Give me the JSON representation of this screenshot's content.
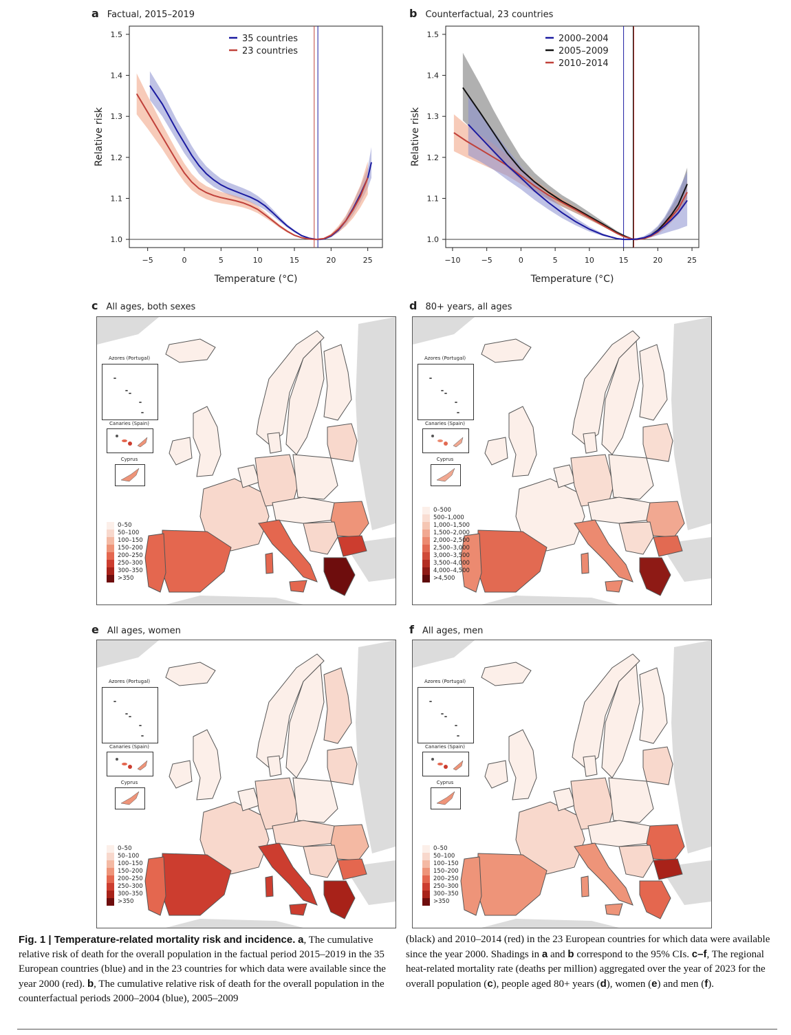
{
  "chart_data": [
    {
      "id": "a",
      "type": "line",
      "panel_letter": "a",
      "title": "Factual, 2015–2019",
      "xlabel": "Temperature (°C)",
      "ylabel": "Relative risk",
      "xlim": [
        -7.5,
        27
      ],
      "ylim": [
        0.98,
        1.52
      ],
      "xticks": [
        -5,
        0,
        5,
        10,
        15,
        20,
        25
      ],
      "yticks": [
        1.0,
        1.1,
        1.2,
        1.3,
        1.4,
        1.5
      ],
      "ytick_labels": [
        "1.0",
        "1.1",
        "1.2",
        "1.3",
        "1.4",
        "1.5"
      ],
      "reference_line_y": 1.0,
      "legend_position": "top-center",
      "series": [
        {
          "name": "35 countries",
          "color": "#1a1aa0",
          "band_color": "#8a8fd0",
          "mmt": 18.2,
          "x": [
            -4.7,
            -3,
            -1,
            0,
            1,
            2,
            3,
            4,
            5,
            6,
            7,
            8,
            9,
            10,
            11,
            12,
            13,
            14,
            15,
            16,
            17,
            18,
            18.5,
            19,
            20,
            21,
            22,
            23,
            24,
            25,
            25.5
          ],
          "y": [
            1.375,
            1.33,
            1.265,
            1.235,
            1.205,
            1.18,
            1.16,
            1.145,
            1.133,
            1.124,
            1.117,
            1.11,
            1.103,
            1.094,
            1.082,
            1.066,
            1.049,
            1.033,
            1.02,
            1.009,
            1.003,
            1.0,
            1.0,
            1.001,
            1.008,
            1.023,
            1.045,
            1.075,
            1.11,
            1.15,
            1.188
          ],
          "lower": [
            1.34,
            1.3,
            1.24,
            1.21,
            1.185,
            1.16,
            1.142,
            1.128,
            1.118,
            1.109,
            1.102,
            1.096,
            1.09,
            1.082,
            1.072,
            1.058,
            1.043,
            1.029,
            1.017,
            1.007,
            1.002,
            1.0,
            1.0,
            1.0,
            1.005,
            1.017,
            1.035,
            1.06,
            1.09,
            1.125,
            1.15
          ],
          "upper": [
            1.41,
            1.36,
            1.29,
            1.26,
            1.228,
            1.2,
            1.178,
            1.162,
            1.148,
            1.139,
            1.132,
            1.125,
            1.117,
            1.106,
            1.092,
            1.074,
            1.055,
            1.037,
            1.023,
            1.011,
            1.004,
            1.0,
            1.0,
            1.002,
            1.011,
            1.029,
            1.055,
            1.09,
            1.13,
            1.175,
            1.225
          ]
        },
        {
          "name": "23 countries",
          "color": "#c0413a",
          "band_color": "#f0a080",
          "mmt": 17.7,
          "x": [
            -6.5,
            -5,
            -3,
            -1,
            0,
            1,
            2,
            3,
            4,
            5,
            6,
            7,
            8,
            9,
            10,
            11,
            12,
            13,
            14,
            15,
            16,
            17,
            17.7,
            18,
            19,
            20,
            21,
            22,
            23,
            24,
            25
          ],
          "y": [
            1.355,
            1.31,
            1.25,
            1.19,
            1.162,
            1.14,
            1.124,
            1.114,
            1.107,
            1.102,
            1.098,
            1.094,
            1.089,
            1.082,
            1.073,
            1.06,
            1.046,
            1.032,
            1.02,
            1.01,
            1.004,
            1.001,
            1.0,
            1.0,
            1.002,
            1.01,
            1.025,
            1.045,
            1.072,
            1.105,
            1.15
          ],
          "lower": [
            1.305,
            1.27,
            1.22,
            1.165,
            1.14,
            1.12,
            1.107,
            1.098,
            1.092,
            1.088,
            1.085,
            1.082,
            1.078,
            1.072,
            1.064,
            1.053,
            1.041,
            1.028,
            1.017,
            1.008,
            1.003,
            1.0,
            1.0,
            1.0,
            1.001,
            1.006,
            1.017,
            1.032,
            1.052,
            1.078,
            1.11
          ],
          "upper": [
            1.405,
            1.35,
            1.28,
            1.215,
            1.185,
            1.16,
            1.142,
            1.13,
            1.122,
            1.116,
            1.111,
            1.106,
            1.1,
            1.092,
            1.082,
            1.067,
            1.051,
            1.036,
            1.023,
            1.012,
            1.005,
            1.002,
            1.0,
            1.0,
            1.003,
            1.014,
            1.033,
            1.058,
            1.092,
            1.132,
            1.19
          ]
        }
      ]
    },
    {
      "id": "b",
      "type": "line",
      "panel_letter": "b",
      "title": "Counterfactual, 23 countries",
      "xlabel": "Temperature (°C)",
      "ylabel": "Relative risk",
      "xlim": [
        -11,
        26
      ],
      "ylim": [
        0.98,
        1.52
      ],
      "xticks": [
        -10,
        -5,
        0,
        5,
        10,
        15,
        20,
        25
      ],
      "yticks": [
        1.0,
        1.1,
        1.2,
        1.3,
        1.4,
        1.5
      ],
      "ytick_labels": [
        "1.0",
        "1.1",
        "1.2",
        "1.3",
        "1.4",
        "1.5"
      ],
      "reference_line_y": 1.0,
      "legend_position": "top-center",
      "series": [
        {
          "name": "2005–2009",
          "color": "#111111",
          "band_color": "#707070",
          "mmt": 16.4,
          "x": [
            -8.5,
            -6,
            -4,
            -2,
            0,
            2,
            4,
            6,
            8,
            10,
            12,
            14,
            15,
            16.4,
            17,
            18,
            19,
            20,
            21,
            22,
            23,
            24.3
          ],
          "y": [
            1.37,
            1.31,
            1.26,
            1.21,
            1.17,
            1.14,
            1.115,
            1.093,
            1.075,
            1.056,
            1.037,
            1.017,
            1.009,
            1.0,
            1.0,
            1.003,
            1.01,
            1.022,
            1.04,
            1.06,
            1.085,
            1.135
          ],
          "lower": [
            1.29,
            1.25,
            1.21,
            1.175,
            1.145,
            1.12,
            1.098,
            1.08,
            1.064,
            1.048,
            1.031,
            1.013,
            1.006,
            1.0,
            1.0,
            1.002,
            1.006,
            1.015,
            1.028,
            1.045,
            1.065,
            1.1
          ],
          "upper": [
            1.455,
            1.38,
            1.315,
            1.255,
            1.2,
            1.162,
            1.133,
            1.108,
            1.088,
            1.066,
            1.043,
            1.021,
            1.012,
            1.0,
            1.001,
            1.005,
            1.015,
            1.03,
            1.052,
            1.08,
            1.11,
            1.175
          ]
        },
        {
          "name": "2010–2014",
          "color": "#c0413a",
          "band_color": "#f0a080",
          "mmt": 16.5,
          "x": [
            -9.8,
            -8,
            -6,
            -4,
            -2,
            0,
            2,
            4,
            6,
            8,
            10,
            12,
            14,
            15,
            16.5,
            17,
            18,
            19,
            20,
            21,
            22,
            23,
            24.3
          ],
          "y": [
            1.26,
            1.24,
            1.22,
            1.2,
            1.18,
            1.155,
            1.13,
            1.108,
            1.09,
            1.072,
            1.053,
            1.034,
            1.015,
            1.007,
            1.0,
            1.0,
            1.002,
            1.008,
            1.018,
            1.035,
            1.055,
            1.075,
            1.115
          ],
          "lower": [
            1.215,
            1.2,
            1.185,
            1.17,
            1.155,
            1.135,
            1.115,
            1.097,
            1.081,
            1.065,
            1.048,
            1.031,
            1.013,
            1.006,
            1.0,
            1.0,
            1.001,
            1.005,
            1.012,
            1.025,
            1.042,
            1.06,
            1.09
          ],
          "upper": [
            1.305,
            1.28,
            1.255,
            1.232,
            1.205,
            1.175,
            1.145,
            1.12,
            1.099,
            1.079,
            1.058,
            1.037,
            1.017,
            1.008,
            1.0,
            1.001,
            1.004,
            1.012,
            1.025,
            1.045,
            1.068,
            1.092,
            1.14
          ]
        },
        {
          "name": "2000–2004",
          "color": "#1a1aa0",
          "band_color": "#8a8fd0",
          "mmt": 15.0,
          "x": [
            -7.7,
            -6,
            -4,
            -2,
            0,
            2,
            4,
            6,
            8,
            10,
            12,
            14,
            15,
            16,
            17,
            18,
            19,
            20,
            21,
            22,
            23,
            24.3
          ],
          "y": [
            1.28,
            1.25,
            1.215,
            1.18,
            1.15,
            1.118,
            1.09,
            1.065,
            1.043,
            1.025,
            1.011,
            1.002,
            1.0,
            1.0,
            1.001,
            1.004,
            1.01,
            1.02,
            1.033,
            1.048,
            1.065,
            1.095
          ],
          "lower": [
            1.205,
            1.19,
            1.17,
            1.145,
            1.122,
            1.096,
            1.073,
            1.052,
            1.034,
            1.019,
            1.008,
            1.001,
            1.0,
            1.0,
            1.0,
            1.002,
            1.005,
            1.01,
            1.015,
            1.02,
            1.025,
            1.033
          ],
          "upper": [
            1.35,
            1.31,
            1.265,
            1.22,
            1.178,
            1.14,
            1.107,
            1.078,
            1.052,
            1.031,
            1.014,
            1.003,
            1.0,
            1.001,
            1.003,
            1.008,
            1.018,
            1.033,
            1.055,
            1.085,
            1.12,
            1.165
          ]
        }
      ]
    },
    {
      "id": "c",
      "type": "heatmap",
      "panel_letter": "c",
      "title": "All ages, both sexes",
      "legend_position": "bottom-left",
      "legend": [
        "0–50",
        "50–100",
        "100–150",
        "150–200",
        "200–250",
        "250–300",
        "300–350",
        ">350"
      ],
      "insets": [
        "Azores (Portugal)",
        "Canaries (Spain)",
        "Cyprus"
      ]
    },
    {
      "id": "d",
      "type": "heatmap",
      "panel_letter": "d",
      "title": "80+ years, all ages",
      "legend_position": "bottom-left",
      "legend": [
        "0–500",
        "500–1,000",
        "1,000–1,500",
        "1,500–2,000",
        "2,000–2,500",
        "2,500–3,000",
        "3,000–3,500",
        "3,500–4,000",
        "4,000–4,500",
        ">4,500"
      ],
      "insets": [
        "Azores (Portugal)",
        "Canaries (Spain)",
        "Cyprus"
      ]
    },
    {
      "id": "e",
      "type": "heatmap",
      "panel_letter": "e",
      "title": "All ages, women",
      "legend_position": "bottom-left",
      "legend": [
        "0–50",
        "50–100",
        "100–150",
        "150–200",
        "200–250",
        "250–300",
        "300–350",
        ">350"
      ],
      "insets": [
        "Azores (Portugal)",
        "Canaries (Spain)",
        "Cyprus"
      ]
    },
    {
      "id": "f",
      "type": "heatmap",
      "panel_letter": "f",
      "title": "All ages, men",
      "legend_position": "bottom-left",
      "legend": [
        "0–50",
        "50–100",
        "100–150",
        "150–200",
        "200–250",
        "250–300",
        "300–350",
        ">350"
      ],
      "insets": [
        "Azores (Portugal)",
        "Canaries (Spain)",
        "Cyprus"
      ]
    }
  ],
  "colors": {
    "scale8": [
      "#fcefe9",
      "#f8d8cc",
      "#f4b9a3",
      "#ee9479",
      "#e4674f",
      "#cc3d2f",
      "#a82219",
      "#6e0d0d"
    ],
    "scale10": [
      "#fcefe9",
      "#f9ddd2",
      "#f5c6b3",
      "#f1a891",
      "#ec8a70",
      "#e26a52",
      "#cf4a38",
      "#b32d22",
      "#8e1a15",
      "#5e0a0a"
    ],
    "land_other": "#dcdcdc",
    "border": "#555555"
  },
  "caption": {
    "lead": "Fig. 1 | Temperature-related mortality risk and incidence.",
    "left": [
      {
        "b": "a",
        "t": ", The cumulative relative risk of death for the overall population in the factual period 2015–2019 in the 35 European countries (blue) and in the 23 countries for which data were available since the year 2000 (red). "
      },
      {
        "b": "b",
        "t": ", The cumulative relative risk of death for the overall population in the counterfactual periods 2000–2004 (blue), 2005–2009"
      }
    ],
    "right_1": "(black) and 2010–2014 (red) in the 23 European countries for which data were available since the year 2000. Shadings in ",
    "right_a": "a",
    "right_and": " and ",
    "right_b": "b",
    "right_2": " correspond to the 95% CIs. ",
    "right_cf": "c–f",
    "right_3": ", The regional heat-related mortality rate (deaths per million) aggregated over the year of 2023 for the overall population (",
    "right_c": "c",
    "right_4": "), people aged 80+ years (",
    "right_d": "d",
    "right_5": "), women (",
    "right_e": "e",
    "right_6": ") and men (",
    "right_f": "f",
    "right_7": ")."
  }
}
